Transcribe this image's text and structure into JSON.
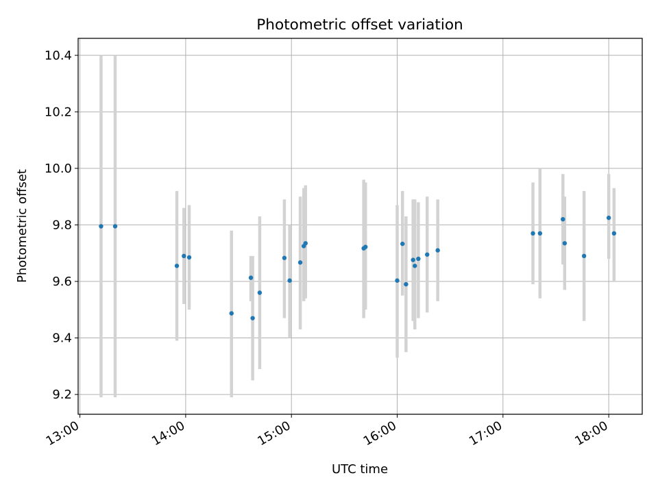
{
  "chart_data": {
    "type": "scatter",
    "title": "Photometric offset variation",
    "xlabel": "UTC time",
    "ylabel": "Photometric offset",
    "x_ticks": [
      "13:00",
      "14:00",
      "15:00",
      "16:00",
      "17:00",
      "18:00"
    ],
    "y_ticks": [
      "9.2",
      "9.4",
      "9.6",
      "9.8",
      "10.0",
      "10.2",
      "10.4"
    ],
    "xlim": [
      "12:59",
      "18:19"
    ],
    "ylim": [
      9.13,
      10.46
    ],
    "grid": true,
    "colors": {
      "points": "#1f77b4",
      "error_bars": "#d3d3d3",
      "grid": "#b0b0b0"
    },
    "points": [
      {
        "x": "13:12",
        "y": 9.795,
        "ylow": 9.19,
        "yhigh": 10.4
      },
      {
        "x": "13:20",
        "y": 9.795,
        "ylow": 9.19,
        "yhigh": 10.4
      },
      {
        "x": "13:55",
        "y": 9.655,
        "ylow": 9.39,
        "yhigh": 9.92
      },
      {
        "x": "13:59",
        "y": 9.69,
        "ylow": 9.52,
        "yhigh": 9.86
      },
      {
        "x": "14:02",
        "y": 9.685,
        "ylow": 9.5,
        "yhigh": 9.87
      },
      {
        "x": "14:26",
        "y": 9.487,
        "ylow": 9.19,
        "yhigh": 9.78
      },
      {
        "x": "14:37",
        "y": 9.613,
        "ylow": 9.53,
        "yhigh": 9.69
      },
      {
        "x": "14:38",
        "y": 9.47,
        "ylow": 9.25,
        "yhigh": 9.69
      },
      {
        "x": "14:42",
        "y": 9.56,
        "ylow": 9.29,
        "yhigh": 9.83
      },
      {
        "x": "14:56",
        "y": 9.683,
        "ylow": 9.47,
        "yhigh": 9.89
      },
      {
        "x": "14:59",
        "y": 9.603,
        "ylow": 9.4,
        "yhigh": 9.8
      },
      {
        "x": "15:05",
        "y": 9.667,
        "ylow": 9.43,
        "yhigh": 9.9
      },
      {
        "x": "15:07",
        "y": 9.725,
        "ylow": 9.53,
        "yhigh": 9.93
      },
      {
        "x": "15:08",
        "y": 9.735,
        "ylow": 9.54,
        "yhigh": 9.94
      },
      {
        "x": "15:41",
        "y": 9.717,
        "ylow": 9.47,
        "yhigh": 9.96
      },
      {
        "x": "15:42",
        "y": 9.722,
        "ylow": 9.5,
        "yhigh": 9.95
      },
      {
        "x": "16:00",
        "y": 9.603,
        "ylow": 9.33,
        "yhigh": 9.87
      },
      {
        "x": "16:03",
        "y": 9.733,
        "ylow": 9.55,
        "yhigh": 9.92
      },
      {
        "x": "16:05",
        "y": 9.59,
        "ylow": 9.35,
        "yhigh": 9.83
      },
      {
        "x": "16:09",
        "y": 9.676,
        "ylow": 9.46,
        "yhigh": 9.89
      },
      {
        "x": "16:10",
        "y": 9.655,
        "ylow": 9.43,
        "yhigh": 9.89
      },
      {
        "x": "16:12",
        "y": 9.68,
        "ylow": 9.47,
        "yhigh": 9.88
      },
      {
        "x": "16:17",
        "y": 9.695,
        "ylow": 9.49,
        "yhigh": 9.9
      },
      {
        "x": "16:23",
        "y": 9.71,
        "ylow": 9.53,
        "yhigh": 9.89
      },
      {
        "x": "17:17",
        "y": 9.77,
        "ylow": 9.59,
        "yhigh": 9.95
      },
      {
        "x": "17:21",
        "y": 9.77,
        "ylow": 9.54,
        "yhigh": 10.0
      },
      {
        "x": "17:34",
        "y": 9.82,
        "ylow": 9.66,
        "yhigh": 9.98
      },
      {
        "x": "17:35",
        "y": 9.735,
        "ylow": 9.57,
        "yhigh": 9.9
      },
      {
        "x": "17:46",
        "y": 9.69,
        "ylow": 9.46,
        "yhigh": 9.92
      },
      {
        "x": "18:00",
        "y": 9.825,
        "ylow": 9.68,
        "yhigh": 9.98
      },
      {
        "x": "18:03",
        "y": 9.77,
        "ylow": 9.6,
        "yhigh": 9.93
      }
    ]
  }
}
